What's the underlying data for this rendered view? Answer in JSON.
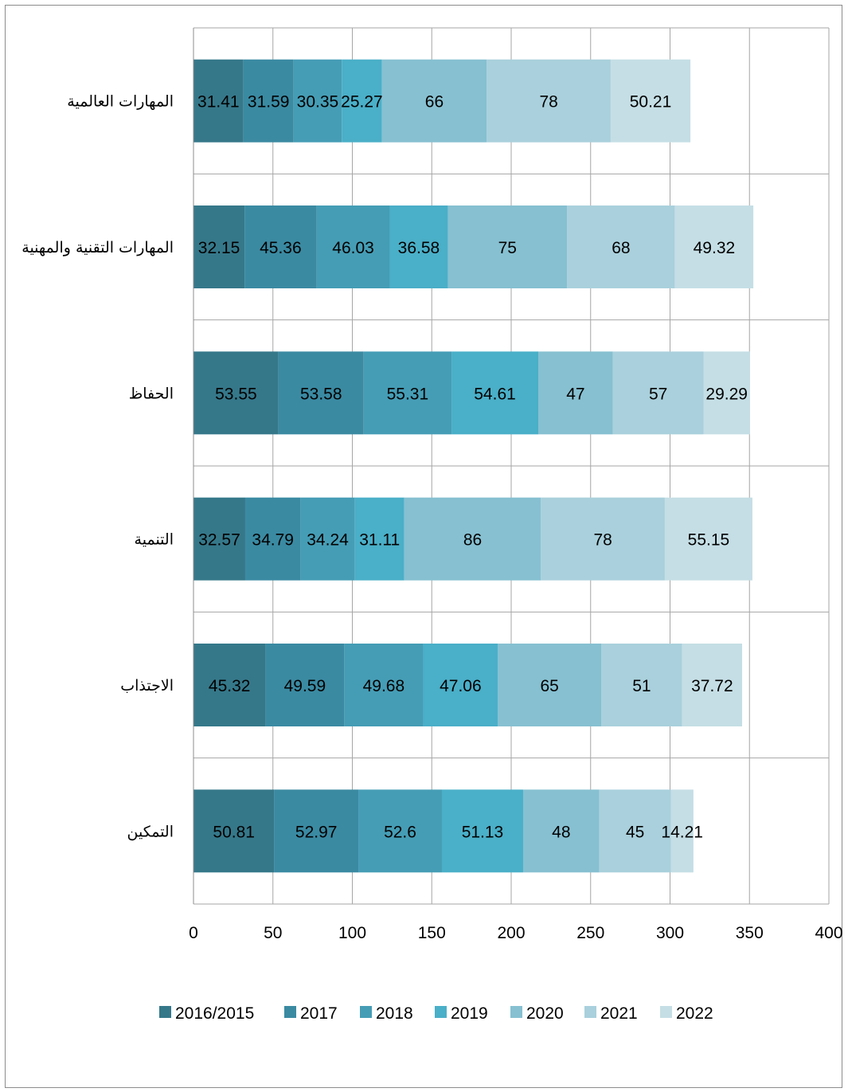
{
  "chart_data": {
    "type": "bar",
    "orientation": "horizontal",
    "stacked": true,
    "categories": [
      "المهارات العالمية",
      "المهارات التقنية والمهنية",
      "الحفاظ",
      "التنمية",
      "الاجتذاب",
      "التمكين"
    ],
    "series": [
      {
        "name": "2016/2015",
        "color": "#35788a",
        "values": [
          31.41,
          32.15,
          53.55,
          32.57,
          45.32,
          50.81
        ]
      },
      {
        "name": "2017",
        "color": "#3a8aa2",
        "values": [
          31.59,
          45.36,
          53.58,
          34.79,
          49.59,
          52.97
        ]
      },
      {
        "name": "2018",
        "color": "#459db5",
        "values": [
          30.35,
          46.03,
          55.31,
          34.24,
          49.68,
          52.6
        ]
      },
      {
        "name": "2019",
        "color": "#4aafc8",
        "values": [
          25.27,
          36.58,
          54.61,
          31.11,
          47.06,
          51.13
        ]
      },
      {
        "name": "2020",
        "color": "#86c0d1",
        "values": [
          66,
          75,
          47,
          86,
          65,
          48
        ]
      },
      {
        "name": "2021",
        "color": "#a9d0dc",
        "values": [
          78,
          68,
          57,
          78,
          51,
          45
        ]
      },
      {
        "name": "2022",
        "color": "#c5dee5",
        "values": [
          50.21,
          49.32,
          29.29,
          55.15,
          37.72,
          14.21
        ]
      }
    ],
    "labels": [
      [
        "31.41",
        "32.15",
        "53.55",
        "32.57",
        "45.32",
        "50.81"
      ],
      [
        "31.59",
        "45.36",
        "53.58",
        "34.79",
        "49.59",
        "52.97"
      ],
      [
        "30.35",
        "46.03",
        "55.31",
        "34.24",
        "49.68",
        "52.6"
      ],
      [
        "25.27",
        "36.58",
        "54.61",
        "31.11",
        "47.06",
        "51.13"
      ],
      [
        "66",
        "75",
        "47",
        "86",
        "65",
        "48"
      ],
      [
        "78",
        "68",
        "57",
        "78",
        "51",
        "45"
      ],
      [
        "50.21",
        "49.32",
        "29.29",
        "55.15",
        "37.72",
        "14.21"
      ]
    ],
    "xlim": [
      0,
      400
    ],
    "xticks": [
      "0",
      "50",
      "100",
      "150",
      "200",
      "250",
      "300",
      "350",
      "400"
    ],
    "grid": true,
    "legend_position": "bottom"
  }
}
